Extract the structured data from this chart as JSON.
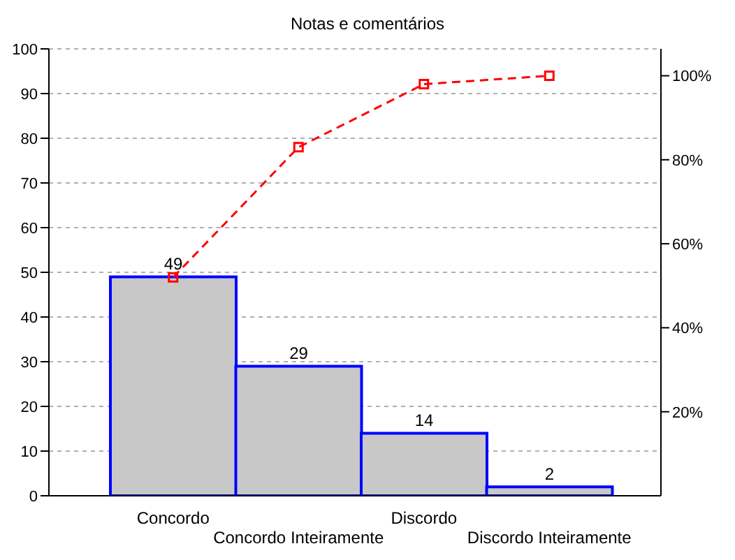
{
  "chart_data": {
    "type": "bar",
    "title": "Notas e comentários",
    "categories": [
      "Concordo",
      "Concordo Inteiramente",
      "Discordo",
      "Discordo Inteiramente"
    ],
    "series": [
      {
        "color": "#c8c8c8",
        "values": [
          49,
          29,
          14,
          2
        ],
        "value_labels": [
          "49",
          "29",
          "14",
          "2"
        ]
      },
      {
        "type": "line",
        "axis": "y2",
        "color": "#ff0000",
        "values": [
          52,
          83,
          98,
          100
        ]
      }
    ],
    "ylim": [
      0,
      100
    ],
    "yticks": [
      0,
      10,
      20,
      30,
      40,
      50,
      60,
      70,
      80,
      90,
      100
    ],
    "y2lim": [
      0,
      106.4
    ],
    "y2ticks": [
      {
        "value": 20,
        "label": "20%"
      },
      {
        "value": 40,
        "label": "40%"
      },
      {
        "value": 60,
        "label": "60%"
      },
      {
        "value": 80,
        "label": "80%"
      },
      {
        "value": 100,
        "label": "100%"
      }
    ],
    "grid": "y",
    "marker": "square",
    "line_style": "dashed"
  }
}
